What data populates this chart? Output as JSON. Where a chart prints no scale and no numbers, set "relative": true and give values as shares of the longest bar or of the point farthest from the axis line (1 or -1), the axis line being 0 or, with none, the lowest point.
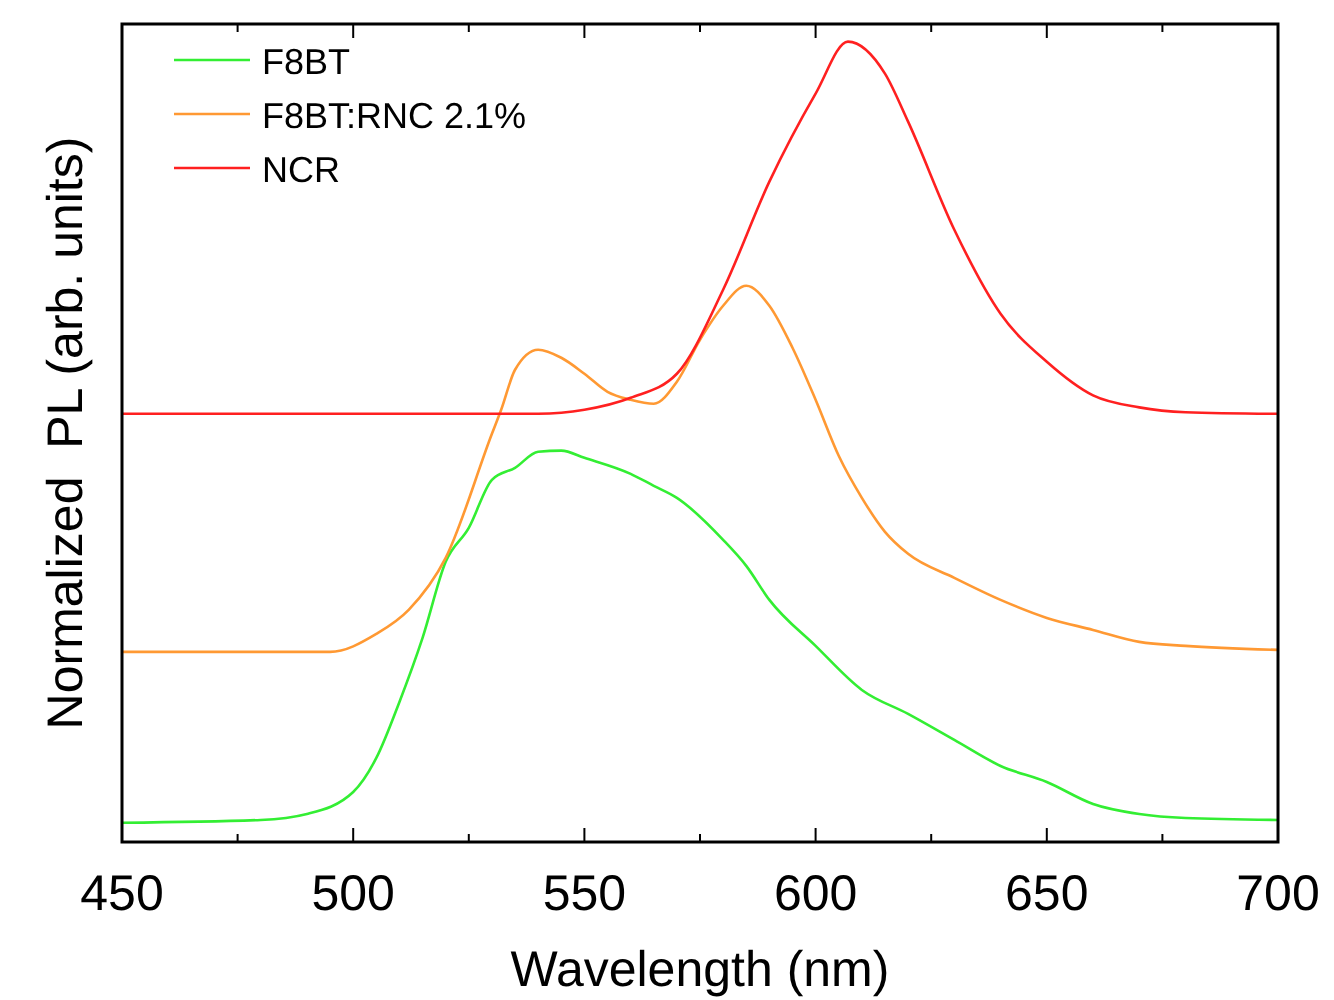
{
  "chart_data": {
    "type": "line",
    "xlabel": "Wavelength (nm)",
    "ylabel": "Normalized  PL (arb. units)",
    "relative": true,
    "legend": "top left",
    "grid": false,
    "line_style": "solid",
    "xlim": [
      450,
      700
    ],
    "xticks": [
      450,
      {
        "value": 475,
        "label": null
      },
      500,
      {
        "value": 525,
        "label": null
      },
      550,
      {
        "value": 575,
        "label": null
      },
      600,
      {
        "value": 625,
        "label": null
      },
      650,
      {
        "value": 675,
        "label": null
      },
      700
    ],
    "series": [
      {
        "name": "F8BT",
        "color": "#33ee33",
        "x": [
          450,
          480,
          490,
          500,
          505,
          510,
          515,
          520,
          525,
          530,
          535,
          540,
          545,
          550,
          560,
          565,
          570,
          580,
          585,
          590,
          600,
          610,
          620,
          630,
          640,
          650,
          660,
          670,
          680,
          700
        ],
        "values": [
          0.024,
          0.0275,
          0.035,
          0.0625,
          0.105,
          0.175,
          0.255,
          0.35,
          0.3925,
          0.4525,
          0.4675,
          0.4875,
          0.489,
          0.48,
          0.46,
          0.445,
          0.43,
          0.3775,
          0.345,
          0.3025,
          0.245,
          0.19,
          0.16,
          0.1275,
          0.095,
          0.075,
          0.0475,
          0.035,
          0.03,
          0.0275
        ]
      },
      {
        "name": "F8BT:RNC 2.1%",
        "color": "#ff9933",
        "x": [
          450,
          495,
          505,
          512,
          520,
          530,
          532,
          535,
          540,
          545,
          550,
          555,
          560,
          565,
          570,
          575,
          580,
          585,
          590,
          595,
          600,
          605,
          610,
          615,
          620,
          630,
          640,
          650,
          660,
          670,
          680,
          700
        ],
        "values": [
          0.2375,
          0.2375,
          0.26,
          0.29,
          0.355,
          0.51,
          0.54,
          0.59,
          0.615,
          0.605,
          0.585,
          0.5625,
          0.5525,
          0.5475,
          0.575,
          0.6275,
          0.67,
          0.695,
          0.67,
          0.6175,
          0.5525,
          0.4825,
          0.43,
          0.3875,
          0.36,
          0.33,
          0.3025,
          0.28,
          0.265,
          0.25,
          0.245,
          0.24
        ]
      },
      {
        "name": "NCR",
        "color": "#ff2020",
        "x": [
          450,
          540,
          550,
          560,
          570,
          580,
          590,
          600,
          607,
          615,
          620,
          630,
          640,
          650,
          660,
          670,
          680,
          700
        ],
        "values": [
          0.535,
          0.535,
          0.54,
          0.555,
          0.585,
          0.69,
          0.825,
          0.935,
          1.0,
          0.96,
          0.9,
          0.765,
          0.66,
          0.6,
          0.558,
          0.543,
          0.537,
          0.535
        ]
      }
    ]
  }
}
